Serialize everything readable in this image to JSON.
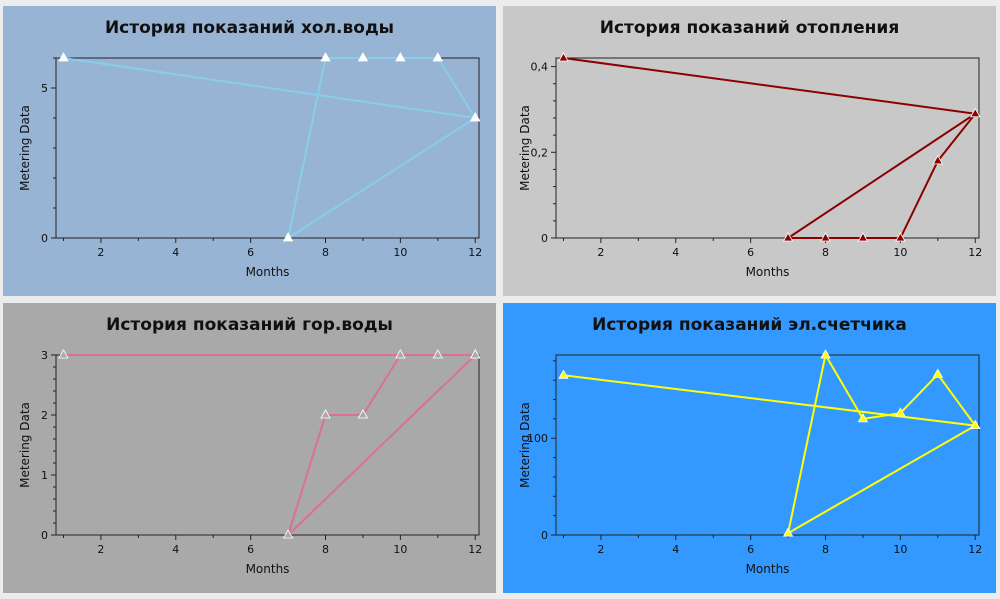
{
  "chart_data": [
    {
      "type": "line",
      "title": "История показаний хол.воды",
      "xlabel": "Months",
      "ylabel": "Metering Data",
      "background": "#98b4d4",
      "line_color": "#87ceeb",
      "marker_fill": "#ffffff",
      "xlim": [
        0.8,
        12.1
      ],
      "ylim": [
        0,
        6
      ],
      "xticks": [
        2,
        4,
        6,
        8,
        10,
        12
      ],
      "yticks": [
        0,
        5
      ],
      "ytick_labels": [
        "0",
        "5"
      ],
      "series": [
        {
          "x": [
            1,
            12,
            7,
            8,
            9,
            10,
            11,
            12
          ],
          "values": [
            6,
            4,
            0,
            6,
            6,
            6,
            6,
            4
          ]
        }
      ]
    },
    {
      "type": "line",
      "title": "История показаний отопления",
      "xlabel": "Months",
      "ylabel": "Metering Data",
      "background": "#c8c8c8",
      "line_color": "#8b0000",
      "marker_fill": "#8b0000",
      "xlim": [
        0.8,
        12.1
      ],
      "ylim": [
        0,
        0.42
      ],
      "xticks": [
        2,
        4,
        6,
        8,
        10,
        12
      ],
      "yticks": [
        0,
        0.2,
        0.4
      ],
      "ytick_labels": [
        "0",
        "0,2",
        "0,4"
      ],
      "series": [
        {
          "x": [
            1,
            12,
            7,
            8,
            9,
            10,
            11,
            12
          ],
          "values": [
            0.42,
            0.29,
            0,
            0,
            0,
            0,
            0.18,
            0.29
          ]
        }
      ]
    },
    {
      "type": "line",
      "title": "История показаний гор.воды",
      "xlabel": "Months",
      "ylabel": "Metering Data",
      "background": "#a9a9a9",
      "line_color": "#db7093",
      "marker_fill": "#a9a9a9",
      "xlim": [
        0.8,
        12.1
      ],
      "ylim": [
        0,
        3
      ],
      "xticks": [
        2,
        4,
        6,
        8,
        10,
        12
      ],
      "yticks": [
        0,
        1,
        2,
        3
      ],
      "ytick_labels": [
        "0",
        "1",
        "2",
        "3"
      ],
      "series": [
        {
          "x": [
            1,
            12,
            7,
            8,
            9,
            10,
            11,
            12
          ],
          "values": [
            3,
            3,
            0,
            2,
            2,
            3,
            3,
            3
          ]
        }
      ]
    },
    {
      "type": "line",
      "title": "История показаний эл.счетчика",
      "xlabel": "Months",
      "ylabel": "Metering Data",
      "background": "#3399ff",
      "line_color": "#ffff00",
      "marker_fill": "#ffff00",
      "xlim": [
        0.8,
        12.1
      ],
      "ylim": [
        0,
        186
      ],
      "xticks": [
        2,
        4,
        6,
        8,
        10,
        12
      ],
      "yticks": [
        0,
        100
      ],
      "ytick_labels": [
        "0",
        "100"
      ],
      "series": [
        {
          "x": [
            1,
            12,
            7,
            8,
            9,
            10,
            11,
            12
          ],
          "values": [
            165,
            113,
            2,
            186,
            120,
            126,
            166,
            113
          ]
        }
      ]
    }
  ]
}
